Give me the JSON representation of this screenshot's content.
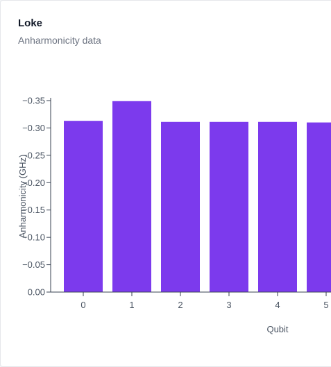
{
  "card": {
    "title": "Loke",
    "subtitle": "Anharmonicity data"
  },
  "colors": {
    "bar": "#7c3aed",
    "axis": "#374151",
    "tick_text": "#4b5563"
  },
  "chart_data": {
    "type": "bar",
    "categories": [
      "0",
      "1",
      "2",
      "3",
      "4",
      "5"
    ],
    "values": [
      -0.313,
      -0.349,
      -0.311,
      -0.311,
      -0.311,
      -0.31
    ],
    "xlabel": "Qubit",
    "ylabel": "Anharmonicity (GHz)",
    "ylim": [
      0,
      -0.35
    ],
    "y_ticks": [
      0,
      -0.05,
      -0.1,
      -0.15,
      -0.2,
      -0.25,
      -0.3,
      -0.35
    ],
    "y_tick_labels": [
      "0.00",
      "−0.05",
      "−0.10",
      "−0.15",
      "−0.20",
      "−0.25",
      "−0.30",
      "−0.35"
    ],
    "grid": false,
    "legend": "none"
  }
}
